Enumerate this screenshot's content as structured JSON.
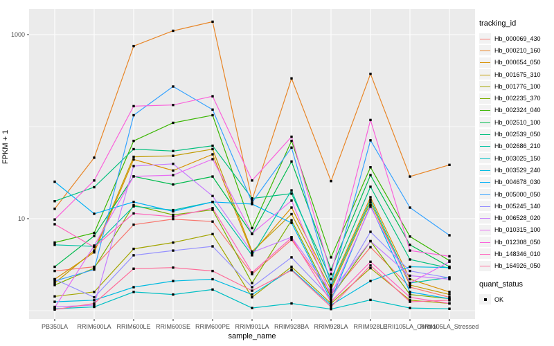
{
  "chart_data": {
    "type": "line",
    "xlabel": "sample_name",
    "ylabel": "FPKM + 1",
    "y_scale": "log10",
    "axis_tick_color": "#4D4D4D",
    "panel_bg": "#EBEBEB",
    "grid_color": "#FFFFFF",
    "point_color": "#000000",
    "legend_key_bg": "#F2F2F2",
    "y_ticks": [
      {
        "label": "1000",
        "value": 1000
      },
      {
        "label": "10",
        "value": 10
      }
    ],
    "y_unlabeled_gridlines": [
      100,
      1
    ],
    "ylim": [
      0.8,
      1900
    ],
    "categories": [
      "PB350LA",
      "RRIM600LA",
      "RRIM600LE",
      "RRIM600SE",
      "RRIM600PE",
      "RRIM901LA",
      "RRIM928BA",
      "RRIM928LA",
      "RRIM928LE",
      "RRII105LA_Control",
      "RRII105LA_Stressed"
    ],
    "legend_title": "tracking_id",
    "quant_legend": {
      "title": "quant_status",
      "item": "OK"
    },
    "series": [
      {
        "name": "Hb_000069_430",
        "color": "#F8766D",
        "values": [
          2.7,
          3.0,
          8.6,
          9.9,
          9.3,
          2.5,
          5.9,
          1.5,
          4.9,
          1.8,
          1.4
        ]
      },
      {
        "name": "Hb_000210_160",
        "color": "#E88526",
        "values": [
          12.8,
          46,
          750,
          1100,
          1380,
          16,
          334,
          25.6,
          375,
          28.7,
          38.4
        ]
      },
      {
        "name": "Hb_000654_050",
        "color": "#D89000",
        "values": [
          2.2,
          4.3,
          44,
          33.3,
          50,
          4.2,
          13.2,
          1.9,
          17.1,
          2.2,
          1.6
        ]
      },
      {
        "name": "Hb_001675_310",
        "color": "#C09B00",
        "values": [
          2.0,
          4.5,
          47,
          48.2,
          57,
          4.4,
          11.2,
          1.7,
          15.0,
          1.9,
          1.5
        ]
      },
      {
        "name": "Hb_001776_100",
        "color": "#A3A500",
        "values": [
          1.43,
          1.6,
          4.7,
          5.5,
          6.8,
          1.4,
          3.0,
          1.2,
          2.9,
          1.3,
          1.2
        ]
      },
      {
        "name": "Hb_002235_370",
        "color": "#7CAE00",
        "values": [
          1.9,
          2.9,
          14,
          11,
          12.5,
          2.0,
          9.6,
          1.4,
          5.7,
          1.5,
          1.35
        ]
      },
      {
        "name": "Hb_002324_040",
        "color": "#39B600",
        "values": [
          5.5,
          7.0,
          70,
          110,
          133,
          7.9,
          70,
          3.8,
          36.2,
          6.4,
          3.5
        ]
      },
      {
        "name": "Hb_002510_100",
        "color": "#00BB4E",
        "values": [
          3.0,
          6.5,
          28.8,
          23.5,
          28.7,
          6.8,
          41.8,
          2.8,
          29.7,
          5.2,
          3.0
        ]
      },
      {
        "name": "Hb_002539_050",
        "color": "#00BF7D",
        "values": [
          15.5,
          22,
          57,
          54.3,
          62,
          16.6,
          18.7,
          2.2,
          22.2,
          3.6,
          2.9
        ]
      },
      {
        "name": "Hb_002686_210",
        "color": "#00C1A3",
        "values": [
          5.2,
          5.0,
          13.6,
          12.4,
          15.2,
          4.0,
          20.3,
          1.8,
          16.0,
          2.0,
          2.3
        ]
      },
      {
        "name": "Hb_003025_150",
        "color": "#00BFC4",
        "values": [
          1.05,
          1.1,
          1.6,
          1.5,
          1.7,
          1.07,
          1.2,
          1.04,
          1.31,
          1.07,
          1.05
        ]
      },
      {
        "name": "Hb_003529_240",
        "color": "#00BAE0",
        "values": [
          1.25,
          1.3,
          1.8,
          2.1,
          2.2,
          1.5,
          2.8,
          1.15,
          2.1,
          3.0,
          2.94
        ]
      },
      {
        "name": "Hb_004678_030",
        "color": "#00B0F6",
        "values": [
          25.2,
          11.3,
          15.2,
          12.0,
          15.2,
          14.4,
          9.0,
          1.3,
          14.0,
          1.6,
          1.35
        ]
      },
      {
        "name": "Hb_005000_050",
        "color": "#35A2FF",
        "values": [
          2.1,
          2.8,
          133,
          273,
          153,
          15.0,
          59.2,
          1.9,
          71,
          13.2,
          6.6
        ]
      },
      {
        "name": "Hb_005245_140",
        "color": "#9590FF",
        "values": [
          2.2,
          1.4,
          4.0,
          4.5,
          5.0,
          1.8,
          3.8,
          1.35,
          7.2,
          2.7,
          2.27
        ]
      },
      {
        "name": "Hb_006528_020",
        "color": "#C77CFF",
        "values": [
          1.1,
          1.15,
          37.3,
          39.4,
          17.6,
          4.3,
          6.3,
          1.6,
          5.7,
          2.4,
          2.2
        ]
      },
      {
        "name": "Hb_010315_100",
        "color": "#E76BF3",
        "values": [
          1.08,
          5.1,
          28.8,
          29.7,
          44.3,
          6.9,
          15.7,
          1.45,
          13.5,
          2.0,
          3.4
        ]
      },
      {
        "name": "Hb_012308_050",
        "color": "#FA62DB",
        "values": [
          9.8,
          26,
          167,
          172,
          214,
          26,
          77.6,
          2.5,
          118,
          4.5,
          3.9
        ]
      },
      {
        "name": "Hb_148346_010",
        "color": "#FF62BC",
        "values": [
          8.7,
          4.9,
          11.4,
          10.5,
          13.0,
          2.6,
          6.2,
          1.25,
          3.4,
          1.4,
          1.2
        ]
      },
      {
        "name": "Hb_164926_050",
        "color": "#FF6A98",
        "values": [
          1.03,
          1.2,
          2.86,
          2.94,
          2.7,
          1.65,
          2.75,
          1.1,
          3.1,
          1.25,
          1.3
        ]
      }
    ]
  }
}
